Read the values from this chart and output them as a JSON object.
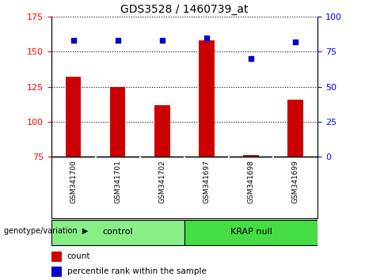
{
  "title": "GDS3528 / 1460739_at",
  "samples": [
    "GSM341700",
    "GSM341701",
    "GSM341702",
    "GSM341697",
    "GSM341698",
    "GSM341699"
  ],
  "bar_values": [
    132,
    125,
    112,
    158,
    76,
    116
  ],
  "dot_values": [
    83,
    83,
    83,
    85,
    70,
    82
  ],
  "bar_color": "#cc0000",
  "dot_color": "#0000cc",
  "ylim_left": [
    75,
    175
  ],
  "ylim_right": [
    0,
    100
  ],
  "yticks_left": [
    75,
    100,
    125,
    150,
    175
  ],
  "yticks_right": [
    0,
    25,
    50,
    75,
    100
  ],
  "groups": [
    {
      "label": "control",
      "indices": [
        0,
        1,
        2
      ],
      "color": "#88ee88"
    },
    {
      "label": "KRAP null",
      "indices": [
        3,
        4,
        5
      ],
      "color": "#44dd44"
    }
  ],
  "xlabel_area": "genotype/variation",
  "legend_count_label": "count",
  "legend_pct_label": "percentile rank within the sample",
  "bar_width": 0.35,
  "base_value": 75,
  "bg_color": "#ffffff",
  "sample_label_bg": "#cccccc"
}
